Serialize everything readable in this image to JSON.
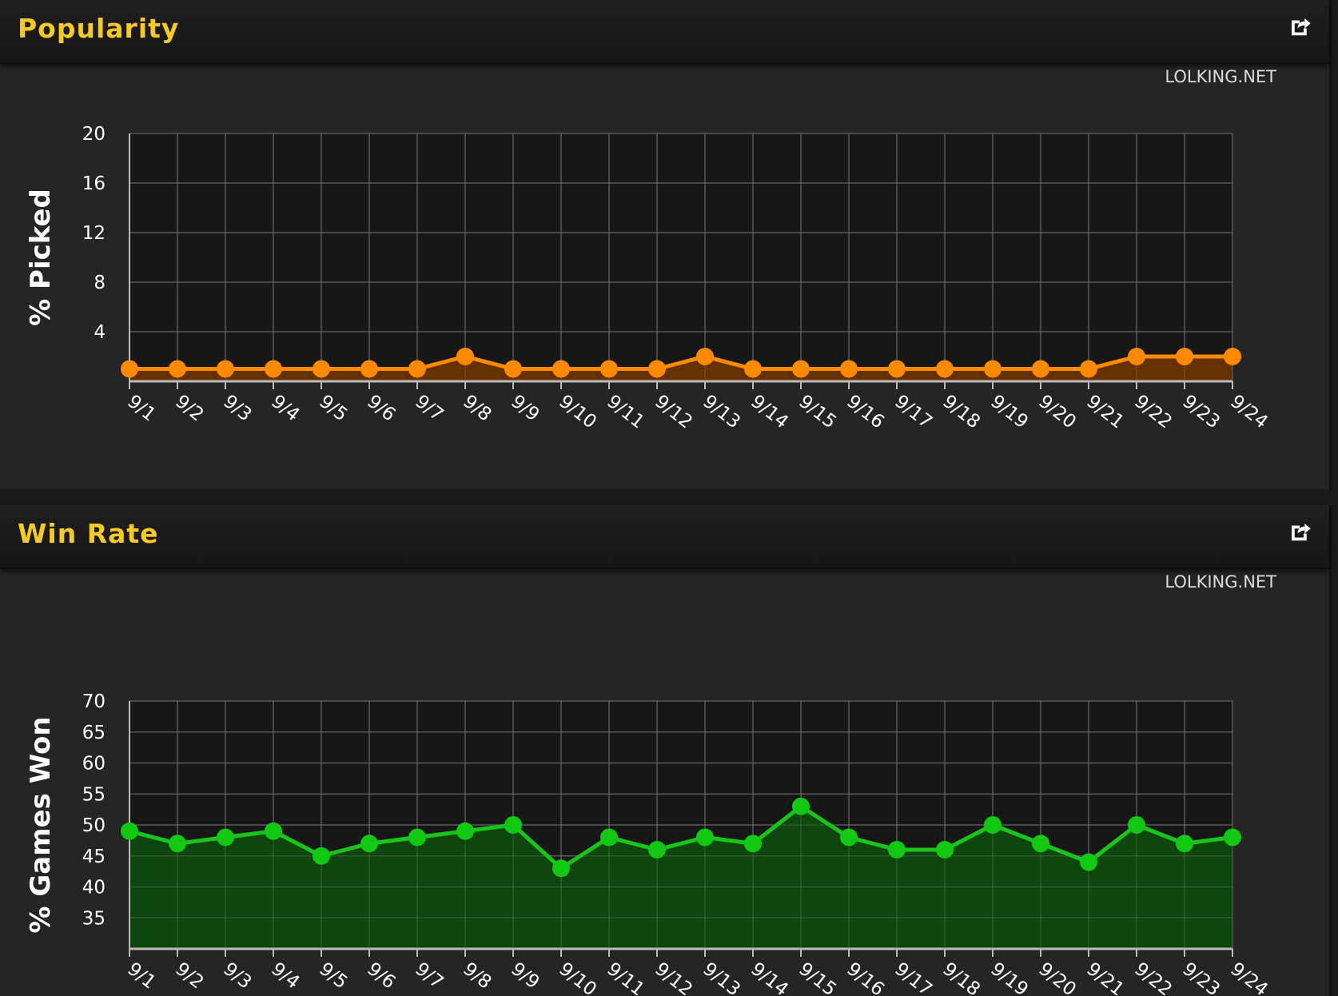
{
  "panels": [
    {
      "title": "Popularity",
      "credit": "LOLKING.NET",
      "export_icon": "export-share-icon"
    },
    {
      "title": "Win Rate",
      "credit": "LOLKING.NET",
      "export_icon": "export-share-icon"
    }
  ],
  "chart_data": [
    {
      "type": "area",
      "title": "Popularity",
      "xlabel": "",
      "ylabel": "% Picked",
      "categories": [
        "9/1",
        "9/2",
        "9/3",
        "9/4",
        "9/5",
        "9/6",
        "9/7",
        "9/8",
        "9/9",
        "9/10",
        "9/11",
        "9/12",
        "9/13",
        "9/14",
        "9/15",
        "9/16",
        "9/17",
        "9/18",
        "9/19",
        "9/20",
        "9/21",
        "9/22",
        "9/23",
        "9/24"
      ],
      "values": [
        1,
        1,
        1,
        1,
        1,
        1,
        1,
        2,
        1,
        1,
        1,
        1,
        2,
        1,
        1,
        1,
        1,
        1,
        1,
        1,
        1,
        2,
        2,
        2
      ],
      "ylim": [
        0,
        20
      ],
      "yticks": [
        4,
        8,
        12,
        16,
        20
      ],
      "grid": true,
      "colors": {
        "line": "#ff8a00",
        "fill": "#6a3300",
        "marker": "#ff8a00"
      }
    },
    {
      "type": "area",
      "title": "Win Rate",
      "xlabel": "",
      "ylabel": "% Games Won",
      "categories": [
        "9/1",
        "9/2",
        "9/3",
        "9/4",
        "9/5",
        "9/6",
        "9/7",
        "9/8",
        "9/9",
        "9/10",
        "9/11",
        "9/12",
        "9/13",
        "9/14",
        "9/15",
        "9/16",
        "9/17",
        "9/18",
        "9/19",
        "9/20",
        "9/21",
        "9/22",
        "9/23",
        "9/24"
      ],
      "values": [
        49,
        47,
        48,
        49,
        45,
        47,
        48,
        49,
        50,
        43,
        48,
        46,
        48,
        47,
        53,
        48,
        46,
        46,
        50,
        47,
        44,
        50,
        47,
        48
      ],
      "ylim": [
        30,
        70
      ],
      "yticks": [
        35,
        40,
        45,
        50,
        55,
        60,
        65,
        70
      ],
      "grid": true,
      "colors": {
        "line": "#1ac41a",
        "fill": "#0e4a0e",
        "marker": "#12c812"
      }
    }
  ]
}
